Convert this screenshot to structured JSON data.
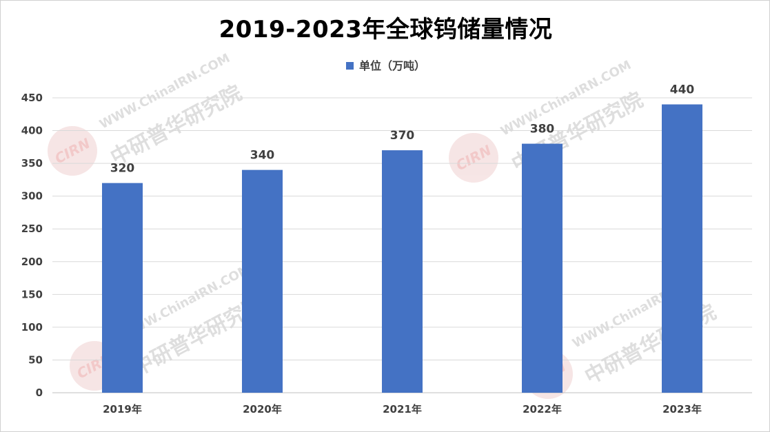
{
  "chart_data": {
    "type": "bar",
    "title": "2019-2023年全球钨储量情况",
    "legend": "单位（万吨）",
    "legend_placement": "top",
    "categories": [
      "2019年",
      "2020年",
      "2021年",
      "2022年",
      "2023年"
    ],
    "series": [
      {
        "name": "单位（万吨）",
        "values": [
          320,
          340,
          370,
          380,
          440
        ]
      }
    ],
    "data_labels": [
      "320",
      "340",
      "370",
      "380",
      "440"
    ],
    "ylim": [
      0,
      450
    ],
    "yticks": [
      0,
      50,
      100,
      150,
      200,
      250,
      300,
      350,
      400,
      450
    ],
    "grid": true,
    "bar_color": "#4472C4"
  },
  "watermark": {
    "url_text": "WWW.ChinaIRN.COM",
    "brand_text": "中研普华研究院",
    "logo_text": "CIRN"
  }
}
